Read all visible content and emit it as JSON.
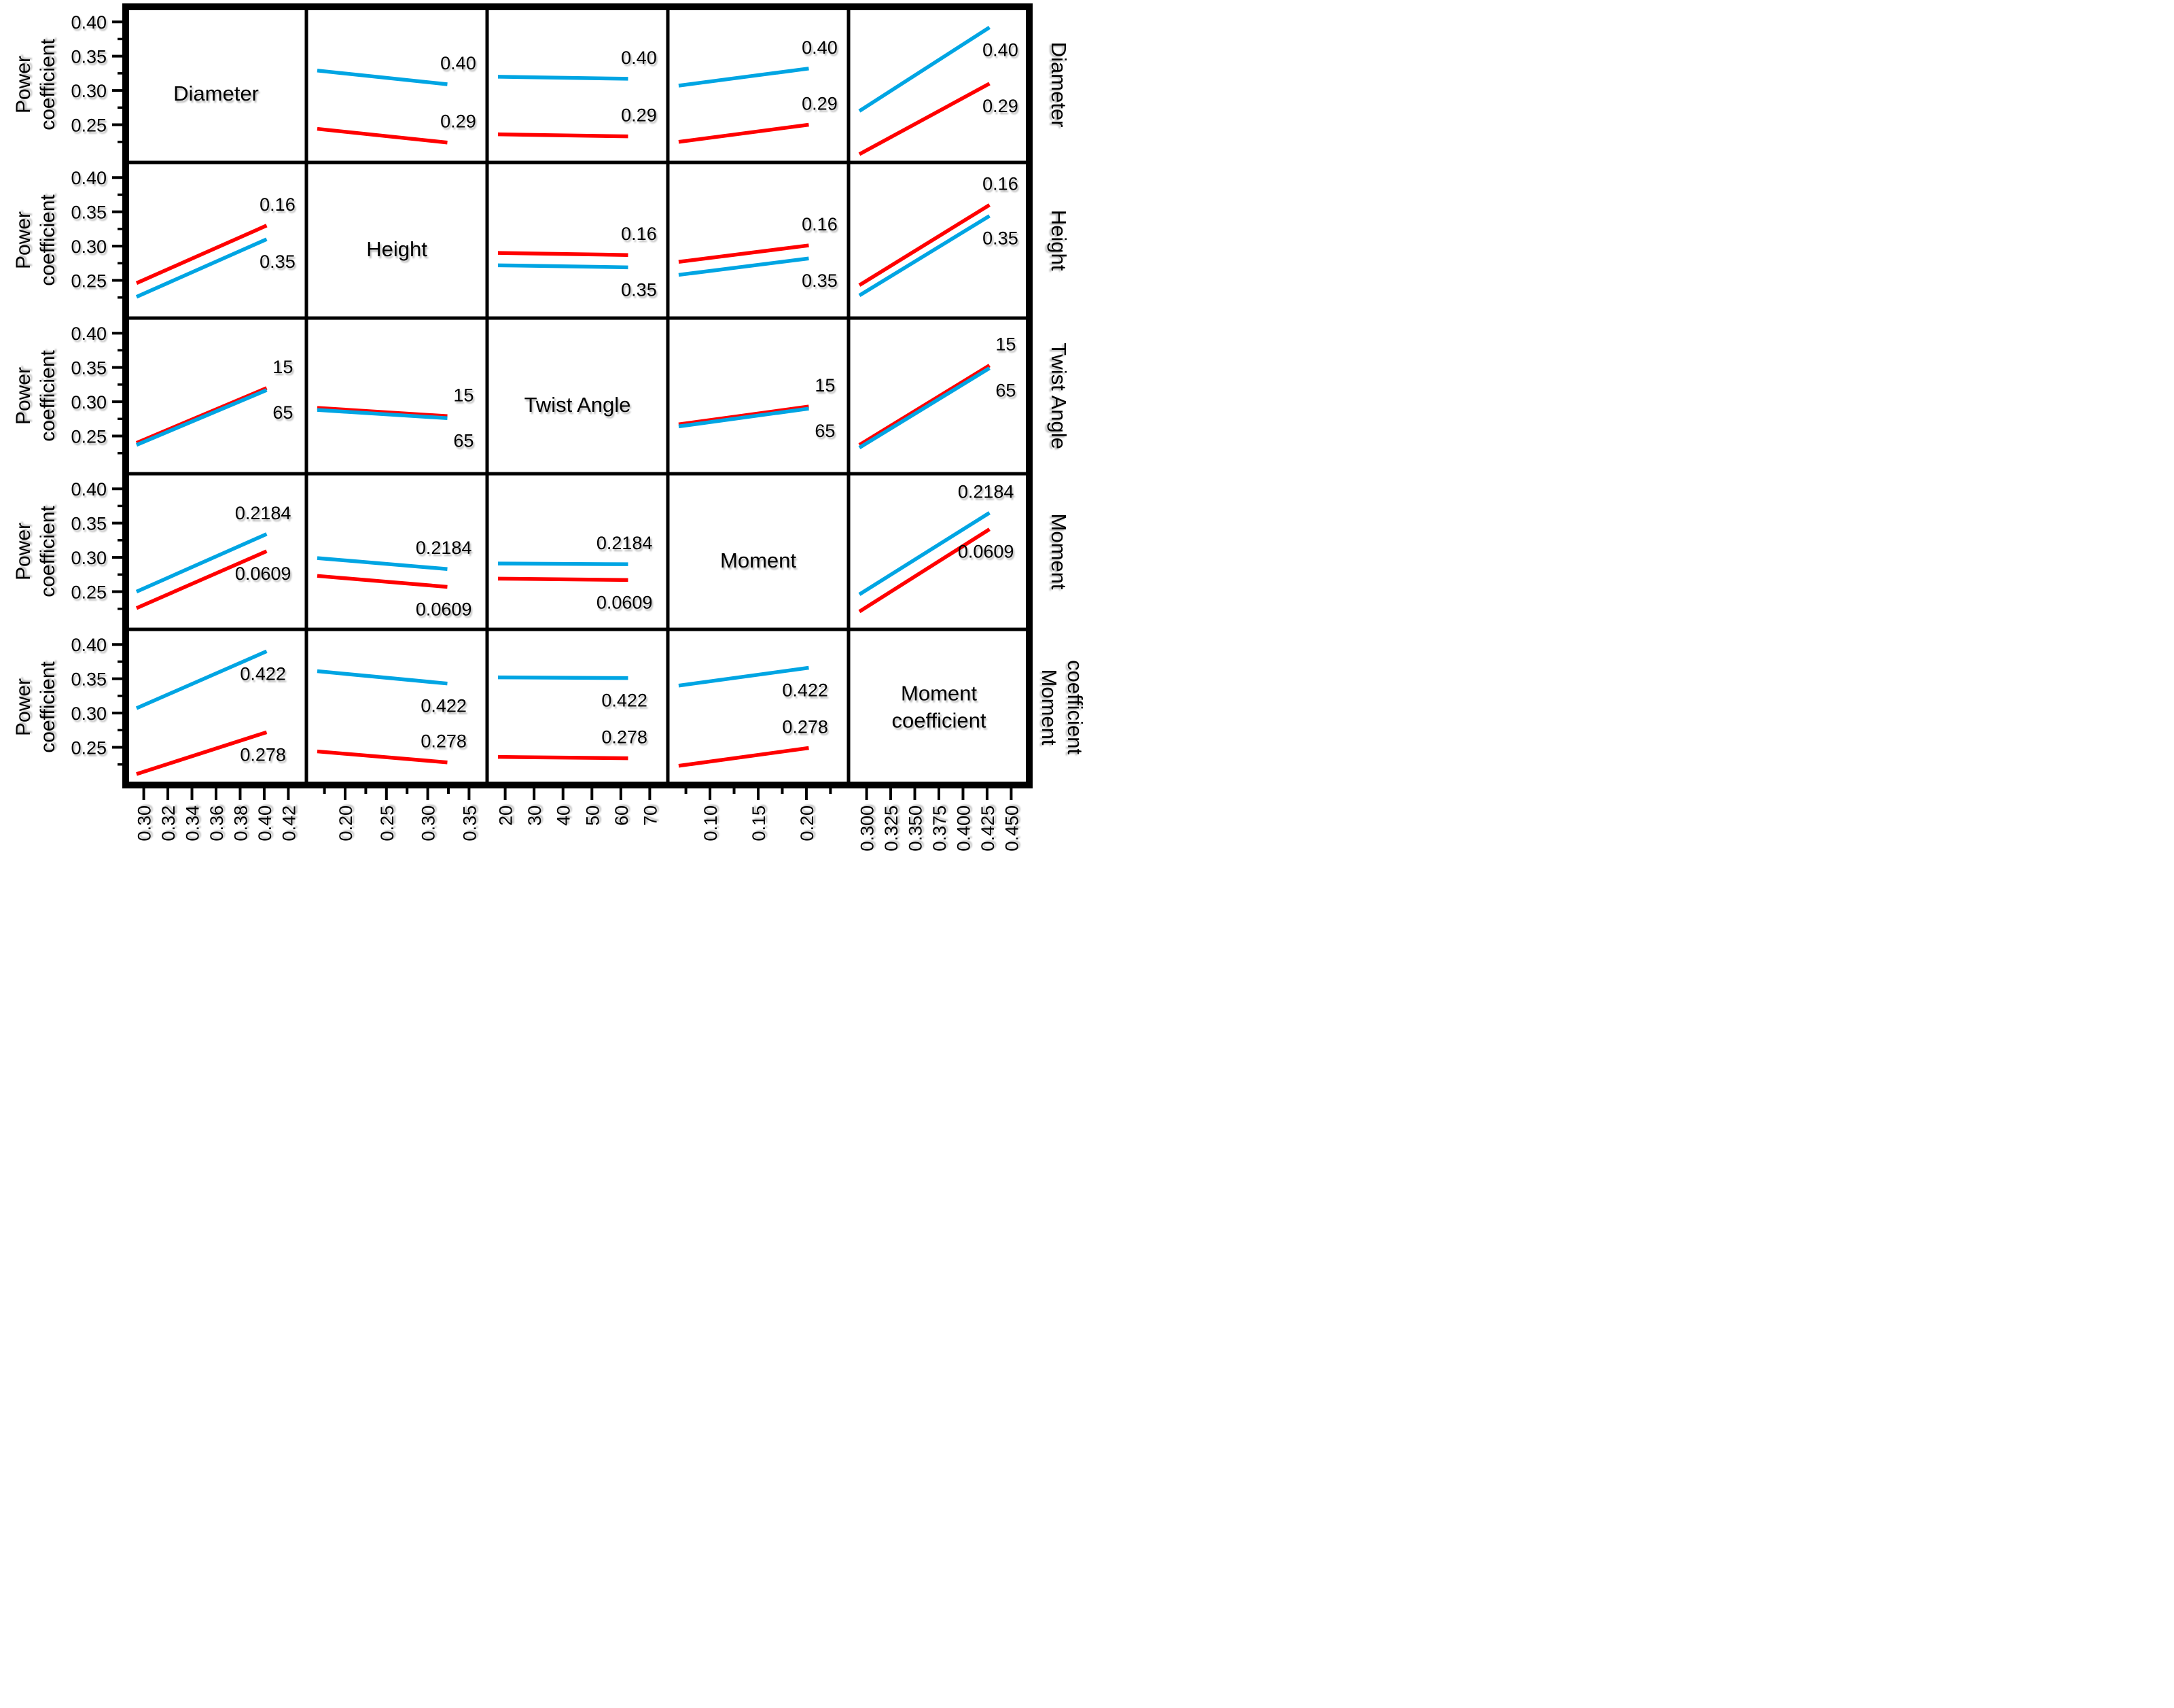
{
  "chart_data": {
    "type": "line",
    "subtype": "interaction-effects-matrix",
    "title": "",
    "ylabel_lines": [
      "Power",
      "coefficient"
    ],
    "y_tick_labels": [
      "0.40",
      "0.35",
      "0.30",
      "0.25"
    ],
    "y_tick_values": [
      0.4,
      0.35,
      0.3,
      0.25
    ],
    "y_minor_tick_values": [
      0.375,
      0.325,
      0.275,
      0.225
    ],
    "y_range": [
      0.195,
      0.422
    ],
    "grid": "off",
    "legend_position": "none",
    "colors": {
      "cyan": "#00A5E3",
      "red": "#FF0000"
    },
    "factors": [
      {
        "name": "Diameter",
        "name_lines": [
          "Diameter"
        ],
        "x_ticks": [
          "0.30",
          "0.32",
          "0.34",
          "0.36",
          "0.38",
          "0.40",
          "0.42"
        ],
        "level_labels": [
          "0.40",
          "0.29"
        ]
      },
      {
        "name": "Height",
        "name_lines": [
          "Height"
        ],
        "x_ticks": [
          null,
          "0.20",
          null,
          "0.25",
          null,
          "0.30",
          null,
          "0.35"
        ],
        "level_labels": [
          "0.16",
          "0.35"
        ]
      },
      {
        "name": "Twist Angle",
        "name_lines": [
          "Twist Angle"
        ],
        "x_ticks": [
          "20",
          "30",
          "40",
          "50",
          "60",
          "70"
        ],
        "level_labels": [
          "15",
          "65"
        ]
      },
      {
        "name": "Moment",
        "name_lines": [
          "Moment"
        ],
        "x_ticks": [
          null,
          "0.10",
          null,
          "0.15",
          null,
          "0.20",
          null
        ],
        "level_labels": [
          "0.2184",
          "0.0609"
        ]
      },
      {
        "name": "Moment coefficient",
        "name_lines": [
          "Moment",
          "coefficient"
        ],
        "x_ticks": [
          "0.300",
          "0.325",
          "0.350",
          "0.375",
          "0.400",
          "0.425",
          "0.450"
        ],
        "level_labels": [
          "0.422",
          "0.278"
        ]
      }
    ],
    "cells": [
      [
        {
          "diag": [
            "Diameter"
          ]
        },
        {
          "lines": [
            {
              "color": "cyan",
              "label": "0.40",
              "v": [
                0.329,
                0.309
              ],
              "pos": "above"
            },
            {
              "color": "red",
              "label": "0.29",
              "v": [
                0.244,
                0.224
              ],
              "pos": "above"
            }
          ]
        },
        {
          "lines": [
            {
              "color": "cyan",
              "label": "0.40",
              "v": [
                0.32,
                0.317
              ],
              "pos": "above"
            },
            {
              "color": "red",
              "label": "0.29",
              "v": [
                0.236,
                0.233
              ],
              "pos": "above"
            }
          ]
        },
        {
          "lines": [
            {
              "color": "cyan",
              "label": "0.40",
              "v": [
                0.307,
                0.332
              ],
              "pos": "above"
            },
            {
              "color": "red",
              "label": "0.29",
              "v": [
                0.225,
                0.25
              ],
              "pos": "above"
            }
          ]
        },
        {
          "lines": [
            {
              "color": "cyan",
              "label": "0.40",
              "v": [
                0.27,
                0.392
              ],
              "pos": "below"
            },
            {
              "color": "red",
              "label": "0.29",
              "v": [
                0.207,
                0.31
              ],
              "pos": "below"
            }
          ]
        }
      ],
      [
        {
          "lines": [
            {
              "color": "red",
              "label": "0.16",
              "v": [
                0.246,
                0.33
              ],
              "pos": "above"
            },
            {
              "color": "cyan",
              "label": "0.35",
              "v": [
                0.226,
                0.31
              ],
              "pos": "below"
            }
          ]
        },
        {
          "diag": [
            "Height"
          ]
        },
        {
          "lines": [
            {
              "color": "red",
              "label": "0.16",
              "v": [
                0.29,
                0.287
              ],
              "pos": "above"
            },
            {
              "color": "cyan",
              "label": "0.35",
              "v": [
                0.272,
                0.269
              ],
              "pos": "below"
            }
          ]
        },
        {
          "lines": [
            {
              "color": "red",
              "label": "0.16",
              "v": [
                0.277,
                0.301
              ],
              "pos": "above"
            },
            {
              "color": "cyan",
              "label": "0.35",
              "v": [
                0.258,
                0.282
              ],
              "pos": "below"
            }
          ]
        },
        {
          "lines": [
            {
              "color": "red",
              "label": "0.16",
              "v": [
                0.243,
                0.36
              ],
              "pos": "above"
            },
            {
              "color": "cyan",
              "label": "0.35",
              "v": [
                0.228,
                0.344
              ],
              "pos": "below"
            }
          ]
        }
      ],
      [
        {
          "lines": [
            {
              "color": "red",
              "label": "15",
              "v": [
                0.24,
                0.32
              ],
              "pos": "above"
            },
            {
              "color": "cyan",
              "label": "65",
              "v": [
                0.237,
                0.317
              ],
              "pos": "below"
            }
          ]
        },
        {
          "lines": [
            {
              "color": "red",
              "label": "15",
              "v": [
                0.291,
                0.279
              ],
              "pos": "above"
            },
            {
              "color": "cyan",
              "label": "65",
              "v": [
                0.288,
                0.276
              ],
              "pos": "below"
            }
          ]
        },
        {
          "diag": [
            "Twist Angle"
          ]
        },
        {
          "lines": [
            {
              "color": "red",
              "label": "15",
              "v": [
                0.267,
                0.293
              ],
              "pos": "above"
            },
            {
              "color": "cyan",
              "label": "65",
              "v": [
                0.264,
                0.29
              ],
              "pos": "below"
            }
          ]
        },
        {
          "lines": [
            {
              "color": "red",
              "label": "15",
              "v": [
                0.237,
                0.353
              ],
              "pos": "above"
            },
            {
              "color": "cyan",
              "label": "65",
              "v": [
                0.233,
                0.349
              ],
              "pos": "below"
            }
          ]
        }
      ],
      [
        {
          "lines": [
            {
              "color": "cyan",
              "label": "0.2184",
              "v": [
                0.25,
                0.334
              ],
              "pos": "above"
            },
            {
              "color": "red",
              "label": "0.0609",
              "v": [
                0.226,
                0.309
              ],
              "pos": "below"
            }
          ]
        },
        {
          "lines": [
            {
              "color": "cyan",
              "label": "0.2184",
              "v": [
                0.299,
                0.283
              ],
              "pos": "above"
            },
            {
              "color": "red",
              "label": "0.0609",
              "v": [
                0.273,
                0.257
              ],
              "pos": "below"
            }
          ]
        },
        {
          "lines": [
            {
              "color": "cyan",
              "label": "0.2184",
              "v": [
                0.291,
                0.29
              ],
              "pos": "above"
            },
            {
              "color": "red",
              "label": "0.0609",
              "v": [
                0.269,
                0.267
              ],
              "pos": "below"
            }
          ]
        },
        {
          "diag": [
            "Moment"
          ]
        },
        {
          "lines": [
            {
              "color": "cyan",
              "label": "0.2184",
              "v": [
                0.246,
                0.365
              ],
              "pos": "above"
            },
            {
              "color": "red",
              "label": "0.0609",
              "v": [
                0.221,
                0.341
              ],
              "pos": "below"
            }
          ]
        }
      ],
      [
        {
          "lines": [
            {
              "color": "cyan",
              "label": "0.422",
              "v": [
                0.307,
                0.39
              ],
              "pos": "below"
            },
            {
              "color": "red",
              "label": "0.278",
              "v": [
                0.211,
                0.272
              ],
              "pos": "below"
            }
          ]
        },
        {
          "lines": [
            {
              "color": "cyan",
              "label": "0.422",
              "v": [
                0.361,
                0.343
              ],
              "pos": "below"
            },
            {
              "color": "red",
              "label": "0.278",
              "v": [
                0.244,
                0.228
              ],
              "pos": "above"
            }
          ]
        },
        {
          "lines": [
            {
              "color": "cyan",
              "label": "0.422",
              "v": [
                0.352,
                0.351
              ],
              "pos": "below"
            },
            {
              "color": "red",
              "label": "0.278",
              "v": [
                0.236,
                0.234
              ],
              "pos": "above"
            }
          ]
        },
        {
          "lines": [
            {
              "color": "cyan",
              "label": "0.422",
              "v": [
                0.34,
                0.366
              ],
              "pos": "below"
            },
            {
              "color": "red",
              "label": "0.278",
              "v": [
                0.223,
                0.249
              ],
              "pos": "above"
            }
          ]
        },
        {
          "diag": [
            "Moment",
            "coefficient"
          ]
        }
      ]
    ]
  }
}
